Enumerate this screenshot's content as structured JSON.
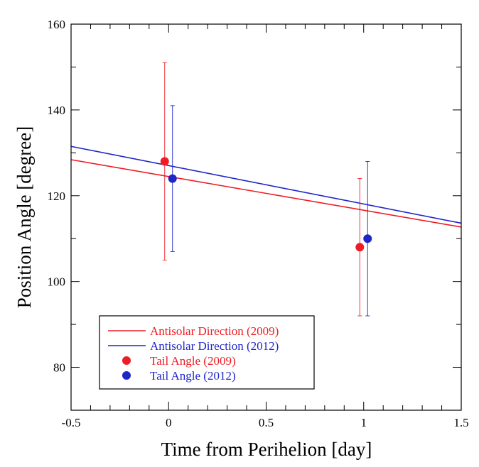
{
  "chart_data": {
    "type": "scatter",
    "title": "",
    "xlabel": "Time from Perihelion [day]",
    "ylabel": "Position Angle [degree]",
    "xlim": [
      -0.5,
      1.5
    ],
    "ylim": [
      70,
      160
    ],
    "x_tick_labels": [
      "-0.5",
      "0",
      "0.5",
      "1",
      "1.5"
    ],
    "y_tick_labels": [
      "80",
      "100",
      "120",
      "140",
      "160"
    ],
    "grid": false,
    "legend_position": "bottom-left",
    "series": [
      {
        "name": "Antisolar Direction (2009)",
        "kind": "line",
        "color": "#ee1c24",
        "x": [
          -0.5,
          1.5
        ],
        "y": [
          128.4,
          112.7
        ]
      },
      {
        "name": "Antisolar Direction (2012)",
        "kind": "line",
        "color": "#1f26c6",
        "x": [
          -0.5,
          1.5
        ],
        "y": [
          131.5,
          113.6
        ]
      },
      {
        "name": "Tail Angle (2009)",
        "kind": "points",
        "color": "#ee1c24",
        "x": [
          -0.02,
          0.98
        ],
        "y": [
          128,
          108
        ],
        "y_err_low": [
          105,
          92
        ],
        "y_err_high": [
          151,
          124
        ]
      },
      {
        "name": "Tail Angle (2012)",
        "kind": "points",
        "color": "#1f26c6",
        "x": [
          0.02,
          1.02
        ],
        "y": [
          124,
          110
        ],
        "y_err_low": [
          107,
          92
        ],
        "y_err_high": [
          141,
          128
        ]
      }
    ]
  }
}
